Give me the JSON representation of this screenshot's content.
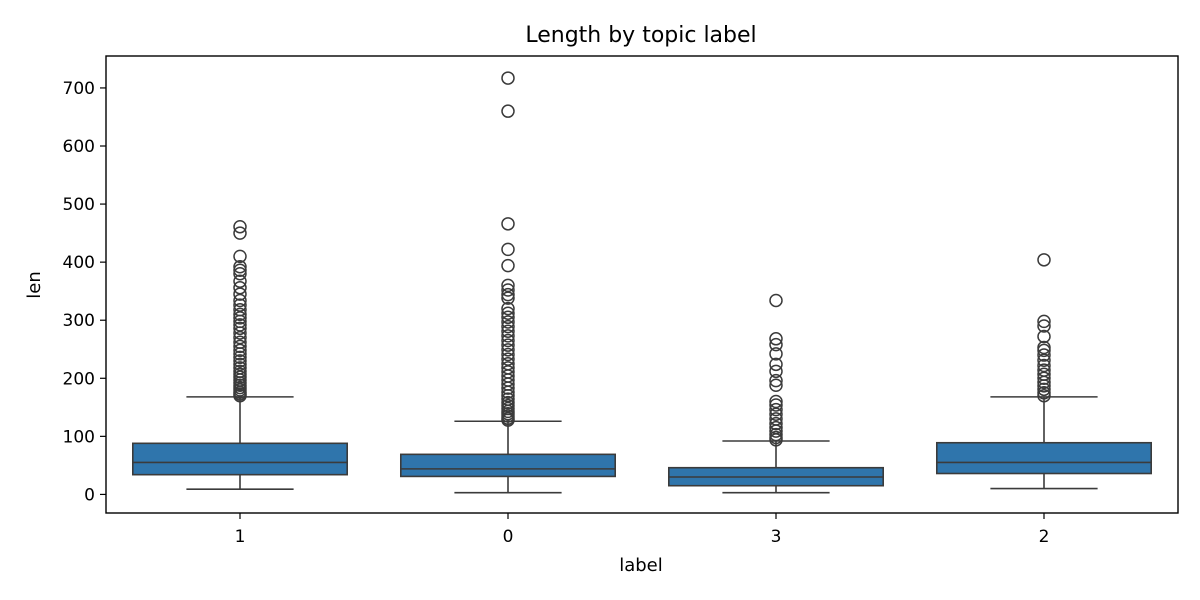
{
  "chart_data": {
    "type": "box",
    "title": "Length by topic label",
    "xlabel": "label",
    "ylabel": "len",
    "categories": [
      "1",
      "0",
      "3",
      "2"
    ],
    "ylim": [
      -32,
      755
    ],
    "yticks": [
      0,
      100,
      200,
      300,
      400,
      500,
      600,
      700
    ],
    "grid": false,
    "box_color": "#2f75ac",
    "line_color": "#3b3b3b",
    "boxes": [
      {
        "category": "1",
        "whislo": 9,
        "q1": 34,
        "median": 55,
        "q3": 88,
        "whishi": 168,
        "fliers": [
          170,
          173,
          176,
          180,
          184,
          188,
          192,
          197,
          202,
          207,
          212,
          218,
          224,
          230,
          236,
          242,
          248,
          255,
          262,
          270,
          278,
          286,
          292,
          298,
          304,
          310,
          318,
          326,
          334,
          345,
          356,
          367,
          380,
          386,
          392,
          410,
          450,
          461
        ]
      },
      {
        "category": "0",
        "whislo": 3,
        "q1": 31,
        "median": 44,
        "q3": 69,
        "whishi": 126,
        "fliers": [
          128,
          131,
          135,
          139,
          143,
          148,
          153,
          158,
          164,
          170,
          176,
          183,
          190,
          197,
          204,
          211,
          218,
          225,
          233,
          241,
          249,
          257,
          265,
          273,
          281,
          289,
          297,
          305,
          312,
          320,
          338,
          344,
          352,
          360,
          394,
          422,
          466,
          660,
          717
        ]
      },
      {
        "category": "3",
        "whislo": 3,
        "q1": 15,
        "median": 30,
        "q3": 46,
        "whishi": 92,
        "fliers": [
          94,
          98,
          103,
          109,
          115,
          122,
          130,
          138,
          146,
          154,
          160,
          188,
          196,
          212,
          224,
          242,
          258,
          268,
          334
        ]
      },
      {
        "category": "2",
        "whislo": 10,
        "q1": 36,
        "median": 55,
        "q3": 89,
        "whishi": 168,
        "fliers": [
          170,
          175,
          181,
          187,
          193,
          200,
          207,
          214,
          222,
          231,
          240,
          248,
          253,
          272,
          290,
          298,
          404
        ]
      }
    ]
  }
}
